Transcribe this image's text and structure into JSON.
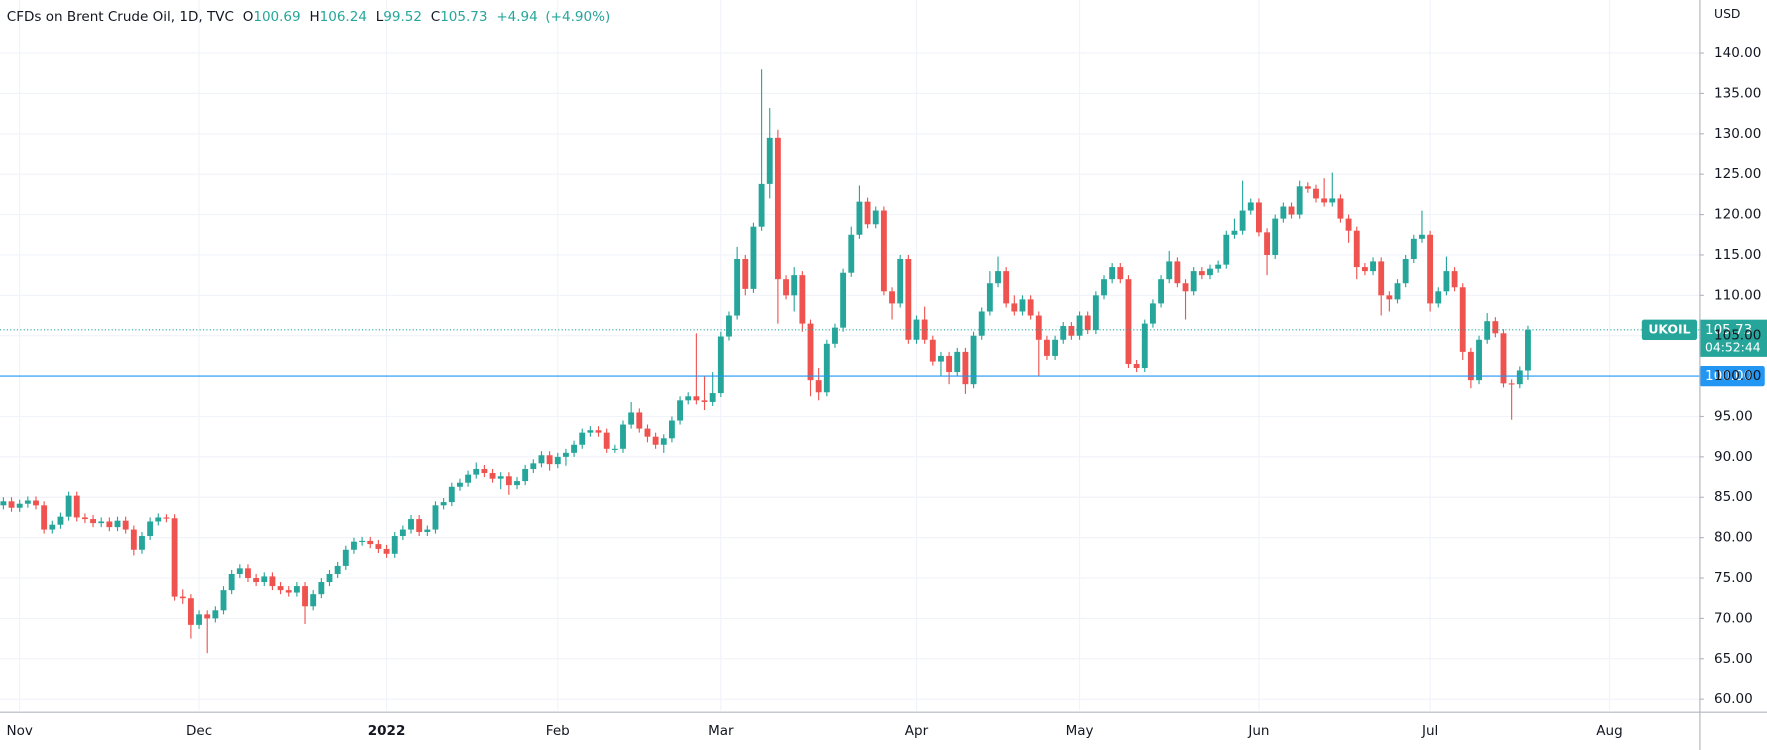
{
  "chart_data": {
    "type": "candlestick",
    "title": "CFDs on Brent Crude Oil, 1D, TVC",
    "ohlc_labels": [
      "O",
      "H",
      "L",
      "C"
    ],
    "change": "+4.94",
    "change_pct": "(+4.90%)",
    "ylabel": "USD",
    "symbol": "UKOIL",
    "countdown": "04:52:44",
    "up_color": "#26a69a",
    "down_color": "#ef5350",
    "grid": true,
    "horizontal_line": {
      "value": 100,
      "label": "100.00",
      "color": "#2196f3"
    },
    "ylim": [
      58.6,
      146.56
    ],
    "yticks": [
      {
        "value": 60,
        "label": "60.00"
      },
      {
        "value": 65,
        "label": "65.00"
      },
      {
        "value": 70,
        "label": "70.00"
      },
      {
        "value": 75,
        "label": "75.00"
      },
      {
        "value": 80,
        "label": "80.00"
      },
      {
        "value": 85,
        "label": "85.00"
      },
      {
        "value": 90,
        "label": "90.00"
      },
      {
        "value": 95,
        "label": "95.00"
      },
      {
        "value": 100,
        "label": "100.00"
      },
      {
        "value": 105,
        "label": "105.00"
      },
      {
        "value": 110,
        "label": "110.00"
      },
      {
        "value": 115,
        "label": "115.00"
      },
      {
        "value": 120,
        "label": "120.00"
      },
      {
        "value": 125,
        "label": "125.00"
      },
      {
        "value": 130,
        "label": "130.00"
      },
      {
        "value": 135,
        "label": "135.00"
      },
      {
        "value": 140,
        "label": "140.00"
      }
    ],
    "categories": [
      null,
      null,
      "Nov",
      null,
      null,
      null,
      null,
      null,
      null,
      null,
      null,
      null,
      null,
      null,
      null,
      null,
      null,
      null,
      null,
      null,
      null,
      null,
      null,
      null,
      "Dec",
      null,
      null,
      null,
      null,
      null,
      null,
      null,
      null,
      null,
      null,
      null,
      null,
      null,
      null,
      null,
      null,
      null,
      null,
      null,
      null,
      null,
      null,
      "2022",
      null,
      null,
      null,
      null,
      null,
      null,
      null,
      null,
      null,
      null,
      null,
      null,
      null,
      null,
      null,
      null,
      null,
      null,
      null,
      null,
      "Feb",
      null,
      null,
      null,
      null,
      null,
      null,
      null,
      null,
      null,
      null,
      null,
      null,
      null,
      null,
      null,
      null,
      null,
      null,
      null,
      "Mar",
      null,
      null,
      null,
      null,
      null,
      null,
      null,
      null,
      null,
      null,
      null,
      null,
      null,
      null,
      null,
      null,
      null,
      null,
      null,
      null,
      null,
      null,
      null,
      "Apr",
      null,
      null,
      null,
      null,
      null,
      null,
      null,
      null,
      null,
      null,
      null,
      null,
      null,
      null,
      null,
      null,
      null,
      null,
      null,
      "May",
      null,
      null,
      null,
      null,
      null,
      null,
      null,
      null,
      null,
      null,
      null,
      null,
      null,
      null,
      null,
      null,
      null,
      null,
      null,
      null,
      null,
      "Jun",
      null,
      null,
      null,
      null,
      null,
      null,
      null,
      null,
      null,
      null,
      null,
      null,
      null,
      null,
      null,
      null,
      null,
      null,
      null,
      null,
      "Jul",
      null,
      null,
      null,
      null,
      null,
      null,
      null,
      null,
      null,
      null,
      null,
      null,
      null,
      null,
      null,
      null,
      null,
      null,
      null,
      null,
      null,
      "Aug"
    ],
    "open": [
      84.0,
      84.5,
      83.7,
      84.2,
      84.6,
      84.0,
      81.0,
      81.6,
      82.6,
      85.2,
      82.5,
      82.3,
      81.8,
      82.0,
      81.3,
      82.1,
      81.0,
      78.5,
      80.2,
      82.0,
      82.5,
      82.4,
      72.7,
      72.5,
      69.2,
      70.5,
      70.0,
      71.0,
      73.5,
      75.5,
      76.2,
      75.0,
      74.5,
      75.2,
      74.0,
      73.5,
      73.2,
      74.0,
      71.5,
      73.0,
      74.5,
      75.5,
      76.5,
      78.5,
      79.5,
      79.6,
      79.2,
      78.6,
      78.0,
      80.2,
      81.0,
      82.3,
      80.7,
      81.0,
      84.0,
      84.4,
      86.3,
      86.8,
      87.8,
      88.5,
      88.0,
      87.3,
      87.6,
      86.5,
      87.0,
      88.5,
      89.2,
      90.2,
      89.1,
      90.0,
      90.5,
      91.5,
      93.0,
      93.3,
      93.0,
      91.0,
      91.0,
      94.0,
      95.5,
      93.5,
      92.5,
      91.5,
      92.3,
      94.5,
      97.0,
      97.5,
      97.0,
      96.8,
      97.9,
      104.9,
      107.5,
      114.5,
      110.8,
      118.5,
      123.8,
      129.5,
      112.0,
      110.0,
      112.5,
      106.5,
      99.5,
      98.0,
      104.0,
      106.0,
      112.8,
      117.5,
      121.6,
      118.8,
      120.5,
      110.5,
      109.0,
      114.5,
      104.5,
      107.0,
      104.5,
      101.8,
      102.5,
      100.5,
      103.0,
      99.0,
      105.0,
      108.0,
      111.5,
      113.0,
      109.0,
      108.0,
      109.5,
      107.5,
      104.5,
      102.5,
      104.5,
      106.2,
      105.0,
      107.5,
      105.7,
      110.0,
      112.0,
      113.5,
      112.0,
      101.5,
      101.0,
      106.5,
      109.0,
      112.0,
      114.2,
      111.5,
      110.5,
      113.0,
      112.5,
      113.3,
      113.8,
      117.5,
      118.0,
      120.5,
      121.5,
      117.8,
      115.0,
      119.5,
      121.0,
      120.0,
      123.5,
      123.2,
      122.0,
      121.5,
      122.0,
      119.5,
      118.0,
      113.5,
      113.0,
      114.2,
      110.0,
      109.5,
      111.5,
      114.5,
      117.0,
      117.5,
      109.0,
      110.5,
      113.0,
      111.0,
      103.0,
      99.5,
      104.5,
      106.8,
      105.3,
      99.1,
      99.0,
      100.69,
      null,
      null,
      null,
      null,
      null,
      null,
      null,
      null,
      null,
      null
    ],
    "high": [
      85.0,
      85.0,
      84.7,
      85.1,
      85.1,
      84.5,
      82.1,
      83.1,
      85.7,
      85.7,
      83.0,
      82.8,
      82.5,
      82.5,
      82.6,
      82.6,
      81.5,
      80.7,
      82.5,
      83.0,
      82.9,
      82.9,
      73.6,
      73.0,
      71.0,
      71.0,
      71.5,
      74.0,
      76.0,
      76.7,
      76.7,
      75.5,
      75.7,
      75.7,
      74.5,
      74.0,
      74.5,
      74.5,
      73.5,
      75.0,
      76.0,
      77.0,
      79.0,
      80.0,
      80.1,
      80.1,
      79.7,
      79.1,
      80.7,
      81.5,
      82.8,
      82.8,
      81.5,
      84.5,
      84.9,
      86.8,
      87.3,
      88.3,
      89.3,
      89.0,
      88.5,
      88.1,
      88.1,
      87.5,
      89.0,
      89.7,
      90.7,
      90.7,
      90.5,
      91.0,
      92.0,
      93.5,
      93.8,
      93.8,
      93.5,
      91.5,
      94.5,
      96.8,
      96.0,
      94.0,
      93.0,
      92.8,
      95.0,
      97.5,
      98.0,
      105.3,
      100.0,
      100.5,
      105.5,
      108.0,
      116.0,
      115.0,
      119.0,
      138.0,
      133.2,
      130.5,
      112.5,
      113.5,
      113.0,
      107.0,
      101.0,
      104.5,
      106.5,
      113.3,
      118.5,
      123.6,
      122.1,
      121.0,
      121.0,
      111.0,
      115.0,
      115.0,
      107.5,
      108.6,
      105.0,
      103.0,
      103.0,
      103.5,
      103.5,
      105.5,
      108.5,
      113.0,
      114.8,
      113.5,
      110.0,
      110.0,
      110.0,
      108.0,
      105.0,
      105.0,
      106.7,
      106.7,
      108.0,
      108.0,
      110.5,
      112.5,
      114.0,
      114.0,
      112.5,
      102.0,
      107.0,
      109.5,
      112.5,
      115.5,
      114.7,
      112.0,
      113.5,
      113.5,
      113.8,
      114.3,
      118.0,
      119.5,
      124.2,
      122.0,
      122.0,
      118.3,
      120.0,
      121.5,
      121.5,
      124.2,
      124.0,
      123.7,
      124.5,
      125.2,
      122.5,
      120.0,
      118.5,
      114.0,
      114.7,
      114.7,
      110.5,
      112.0,
      115.0,
      117.5,
      120.5,
      118.0,
      111.0,
      114.8,
      113.5,
      111.5,
      103.5,
      105.0,
      107.8,
      107.3,
      105.8,
      99.6,
      101.2,
      106.24,
      null,
      null,
      null,
      null,
      null,
      null,
      null,
      null,
      null,
      null
    ],
    "low": [
      83.5,
      83.2,
      83.2,
      83.7,
      83.5,
      80.5,
      80.5,
      81.1,
      82.1,
      82.0,
      81.8,
      81.3,
      81.3,
      80.8,
      80.8,
      80.5,
      77.8,
      78.0,
      79.7,
      81.5,
      81.9,
      72.2,
      71.8,
      67.5,
      68.7,
      65.7,
      69.5,
      70.5,
      73.0,
      75.0,
      74.5,
      74.0,
      74.0,
      73.5,
      73.0,
      72.7,
      72.7,
      69.3,
      71.0,
      72.5,
      74.0,
      75.0,
      76.0,
      78.0,
      79.0,
      78.7,
      78.1,
      77.5,
      77.5,
      79.7,
      80.5,
      80.2,
      80.2,
      80.5,
      83.5,
      83.9,
      85.8,
      86.3,
      87.3,
      87.5,
      86.8,
      86.0,
      85.3,
      86.0,
      86.5,
      88.0,
      88.7,
      88.3,
      88.6,
      88.9,
      90.0,
      91.0,
      92.5,
      92.5,
      90.5,
      90.5,
      90.5,
      93.5,
      93.0,
      91.8,
      91.0,
      90.5,
      91.8,
      94.0,
      96.5,
      96.5,
      95.8,
      96.3,
      97.4,
      104.4,
      107.0,
      110.0,
      110.3,
      118.0,
      122.0,
      106.5,
      109.5,
      108.0,
      105.5,
      97.5,
      97.0,
      97.5,
      103.5,
      105.5,
      112.3,
      117.0,
      118.3,
      118.3,
      110.0,
      107.0,
      108.5,
      104.0,
      104.0,
      104.0,
      101.3,
      100.0,
      99.0,
      100.0,
      97.8,
      98.5,
      104.5,
      107.5,
      111.0,
      108.5,
      107.5,
      107.5,
      107.0,
      100.0,
      102.0,
      102.0,
      104.0,
      104.5,
      104.5,
      105.2,
      105.2,
      109.5,
      111.5,
      111.5,
      101.0,
      100.5,
      100.5,
      106.0,
      108.5,
      111.5,
      111.0,
      107.0,
      110.0,
      112.0,
      112.0,
      112.8,
      113.3,
      117.0,
      117.5,
      120.0,
      117.3,
      112.5,
      114.5,
      119.0,
      119.5,
      119.5,
      122.7,
      121.5,
      121.0,
      121.0,
      119.0,
      116.5,
      112.0,
      112.5,
      112.5,
      107.5,
      108.0,
      109.0,
      111.0,
      114.0,
      116.5,
      108.0,
      108.5,
      110.0,
      110.5,
      102.0,
      98.5,
      99.0,
      104.0,
      104.8,
      98.6,
      94.6,
      98.5,
      99.52,
      null,
      null,
      null,
      null,
      null,
      null,
      null,
      null,
      null,
      null
    ],
    "close": [
      84.5,
      83.7,
      84.2,
      84.6,
      84.0,
      81.0,
      81.6,
      82.6,
      85.2,
      82.5,
      82.3,
      81.8,
      82.0,
      81.3,
      82.1,
      81.0,
      78.5,
      80.2,
      82.0,
      82.5,
      82.4,
      72.7,
      72.5,
      69.2,
      70.5,
      70.0,
      71.0,
      73.5,
      75.5,
      76.2,
      75.0,
      74.5,
      75.2,
      74.0,
      73.5,
      73.2,
      74.0,
      71.5,
      73.0,
      74.5,
      75.5,
      76.5,
      78.5,
      79.5,
      79.6,
      79.2,
      78.6,
      78.0,
      80.2,
      81.0,
      82.3,
      80.7,
      81.0,
      84.0,
      84.4,
      86.3,
      86.8,
      87.8,
      88.5,
      88.0,
      87.3,
      87.6,
      86.5,
      87.0,
      88.5,
      89.2,
      90.2,
      89.1,
      90.0,
      90.5,
      91.5,
      93.0,
      93.3,
      93.0,
      91.0,
      91.0,
      94.0,
      95.5,
      93.5,
      92.5,
      91.5,
      92.3,
      94.5,
      97.0,
      97.5,
      97.0,
      96.8,
      97.9,
      104.9,
      107.5,
      114.5,
      110.8,
      118.5,
      123.8,
      129.5,
      112.0,
      110.0,
      112.5,
      106.5,
      99.5,
      98.0,
      104.0,
      106.0,
      112.8,
      117.5,
      121.6,
      118.8,
      120.5,
      110.5,
      109.0,
      114.5,
      104.5,
      107.0,
      104.5,
      101.8,
      102.5,
      100.5,
      103.0,
      99.0,
      105.0,
      108.0,
      111.5,
      113.0,
      109.0,
      108.0,
      109.5,
      107.5,
      104.5,
      102.5,
      104.5,
      106.2,
      105.0,
      107.5,
      105.7,
      110.0,
      112.0,
      113.5,
      112.0,
      101.5,
      101.0,
      106.5,
      109.0,
      112.0,
      114.2,
      111.5,
      110.5,
      113.0,
      112.5,
      113.3,
      113.8,
      117.5,
      118.0,
      120.5,
      121.5,
      117.8,
      115.0,
      119.5,
      121.0,
      120.0,
      123.5,
      123.2,
      122.0,
      121.5,
      122.0,
      119.5,
      118.0,
      113.5,
      113.0,
      114.2,
      110.0,
      109.5,
      111.5,
      114.5,
      117.0,
      117.5,
      109.0,
      110.5,
      113.0,
      111.0,
      103.0,
      99.5,
      104.5,
      106.8,
      105.3,
      99.1,
      99.0,
      100.7,
      105.73,
      null,
      null,
      null,
      null,
      null,
      null,
      null,
      null,
      null,
      null
    ]
  }
}
